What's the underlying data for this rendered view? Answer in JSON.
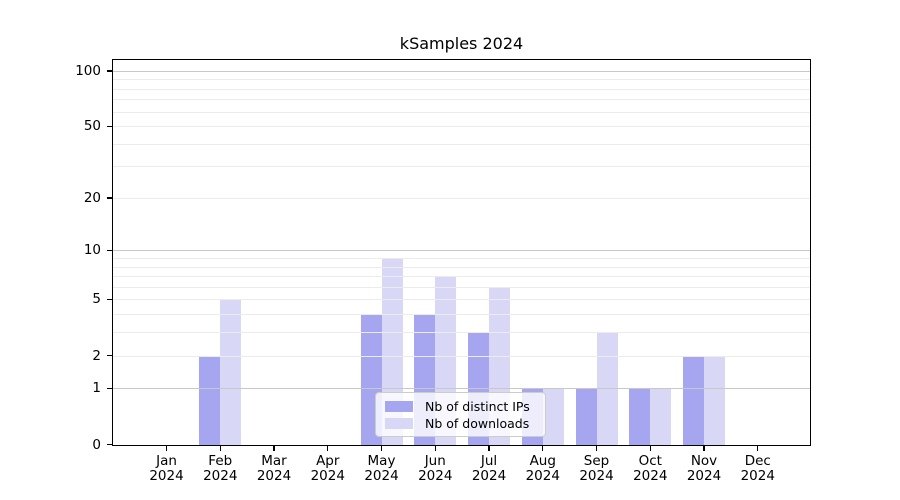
{
  "chart_data": {
    "type": "bar",
    "title": "kSamples 2024",
    "categories": [
      "Jan",
      "Feb",
      "Mar",
      "Apr",
      "May",
      "Jun",
      "Jul",
      "Aug",
      "Sep",
      "Oct",
      "Nov",
      "Dec"
    ],
    "category_year": "2024",
    "series": [
      {
        "name": "Nb of distinct IPs",
        "color": "#a6a6f0",
        "values": [
          0,
          2,
          0,
          0,
          4,
          4,
          3,
          1,
          1,
          1,
          2,
          0
        ]
      },
      {
        "name": "Nb of downloads",
        "color": "#d8d8f6",
        "values": [
          0,
          5,
          0,
          0,
          9,
          7,
          6,
          1,
          3,
          1,
          2,
          0
        ]
      }
    ],
    "xlabel": "",
    "ylabel": "",
    "y_axis": {
      "scale": "log1p",
      "tick_values": [
        0,
        1,
        2,
        5,
        10,
        20,
        50,
        100
      ],
      "tick_labels": [
        "0",
        "1",
        "2",
        "5",
        "10",
        "20",
        "50",
        "100"
      ],
      "major_gridlines": [
        1,
        10,
        100
      ],
      "minor_gridlines": [
        2,
        3,
        4,
        5,
        6,
        7,
        8,
        9,
        20,
        30,
        40,
        50,
        60,
        70,
        80,
        90
      ],
      "ylim": [
        0,
        114
      ]
    },
    "grid": true,
    "legend_position": "inside lower-center",
    "gridlines_over_bars": true
  },
  "colors": {
    "bar_ips": "#a6a6f0",
    "bar_downloads": "#d8d8f6",
    "major_grid": "#c8c8c8",
    "minor_grid": "#ececec",
    "spine": "#000000",
    "legend_border": "#cccccc",
    "text": "#000000"
  }
}
